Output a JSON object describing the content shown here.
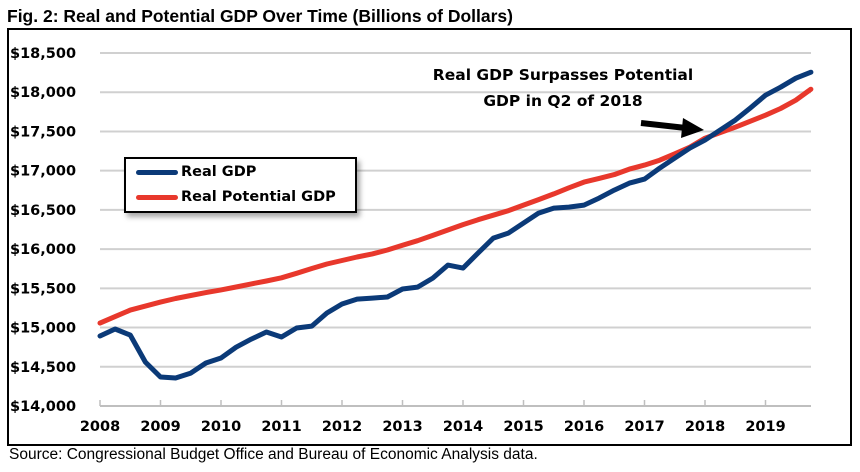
{
  "title": "Fig. 2: Real and Potential GDP Over Time (Billions of Dollars)",
  "source": "Source: Congressional Budget Office and Bureau of Economic Analysis data.",
  "colors": {
    "real_gdp": "#0b3a78",
    "potential_gdp": "#e8382c",
    "grid": "#d0d0d0",
    "axis": "#bfbfbf"
  },
  "chart_data": {
    "type": "line",
    "title": "Fig. 2: Real and Potential GDP Over Time (Billions of Dollars)",
    "xlabel": "",
    "ylabel": "",
    "x_frequency": "quarterly",
    "x_start": "2008 Q1",
    "x_end": "2019 Q4",
    "x_tick_labels": [
      "2008",
      "2009",
      "2010",
      "2011",
      "2012",
      "2013",
      "2014",
      "2015",
      "2016",
      "2017",
      "2018",
      "2019"
    ],
    "y_tick_labels": [
      "$14,000",
      "$14,500",
      "$15,000",
      "$15,500",
      "$16,000",
      "$16,500",
      "$17,000",
      "$17,500",
      "$18,000",
      "$18,500"
    ],
    "y_ticks": [
      14000,
      14500,
      15000,
      15500,
      16000,
      16500,
      17000,
      17500,
      18000,
      18500
    ],
    "ylim": [
      14000,
      18500
    ],
    "grid": "horizontal",
    "legend_position": "upper-left",
    "series": [
      {
        "name": "Real GDP",
        "color": "#0b3a78",
        "values": [
          14892,
          14981,
          14904,
          14560,
          14370,
          14357,
          14420,
          14548,
          14612,
          14750,
          14853,
          14943,
          14879,
          14994,
          15019,
          15185,
          15300,
          15363,
          15376,
          15389,
          15491,
          15516,
          15631,
          15796,
          15758,
          15950,
          16140,
          16204,
          16331,
          16459,
          16523,
          16535,
          16561,
          16650,
          16752,
          16841,
          16892,
          17032,
          17160,
          17288,
          17390,
          17517,
          17644,
          17800,
          17962,
          18064,
          18179,
          18255
        ]
      },
      {
        "name": "Real Potential GDP",
        "color": "#e8382c",
        "values": [
          15057,
          15140,
          15223,
          15274,
          15325,
          15370,
          15409,
          15446,
          15480,
          15517,
          15557,
          15593,
          15634,
          15692,
          15753,
          15810,
          15855,
          15899,
          15939,
          15989,
          16050,
          16107,
          16175,
          16244,
          16312,
          16375,
          16432,
          16490,
          16561,
          16631,
          16704,
          16781,
          16854,
          16901,
          16950,
          17020,
          17071,
          17134,
          17215,
          17300,
          17414,
          17484,
          17554,
          17631,
          17707,
          17793,
          17898,
          18038
        ]
      }
    ],
    "annotations": [
      {
        "text_lines": [
          "Real GDP Surpasses Potential",
          "GDP in Q2 of 2018"
        ],
        "arrow_to": "2018 Q2"
      }
    ]
  },
  "legend": {
    "items": [
      {
        "label": "Real GDP",
        "color": "#0b3a78"
      },
      {
        "label": "Real Potential GDP",
        "color": "#e8382c"
      }
    ]
  }
}
